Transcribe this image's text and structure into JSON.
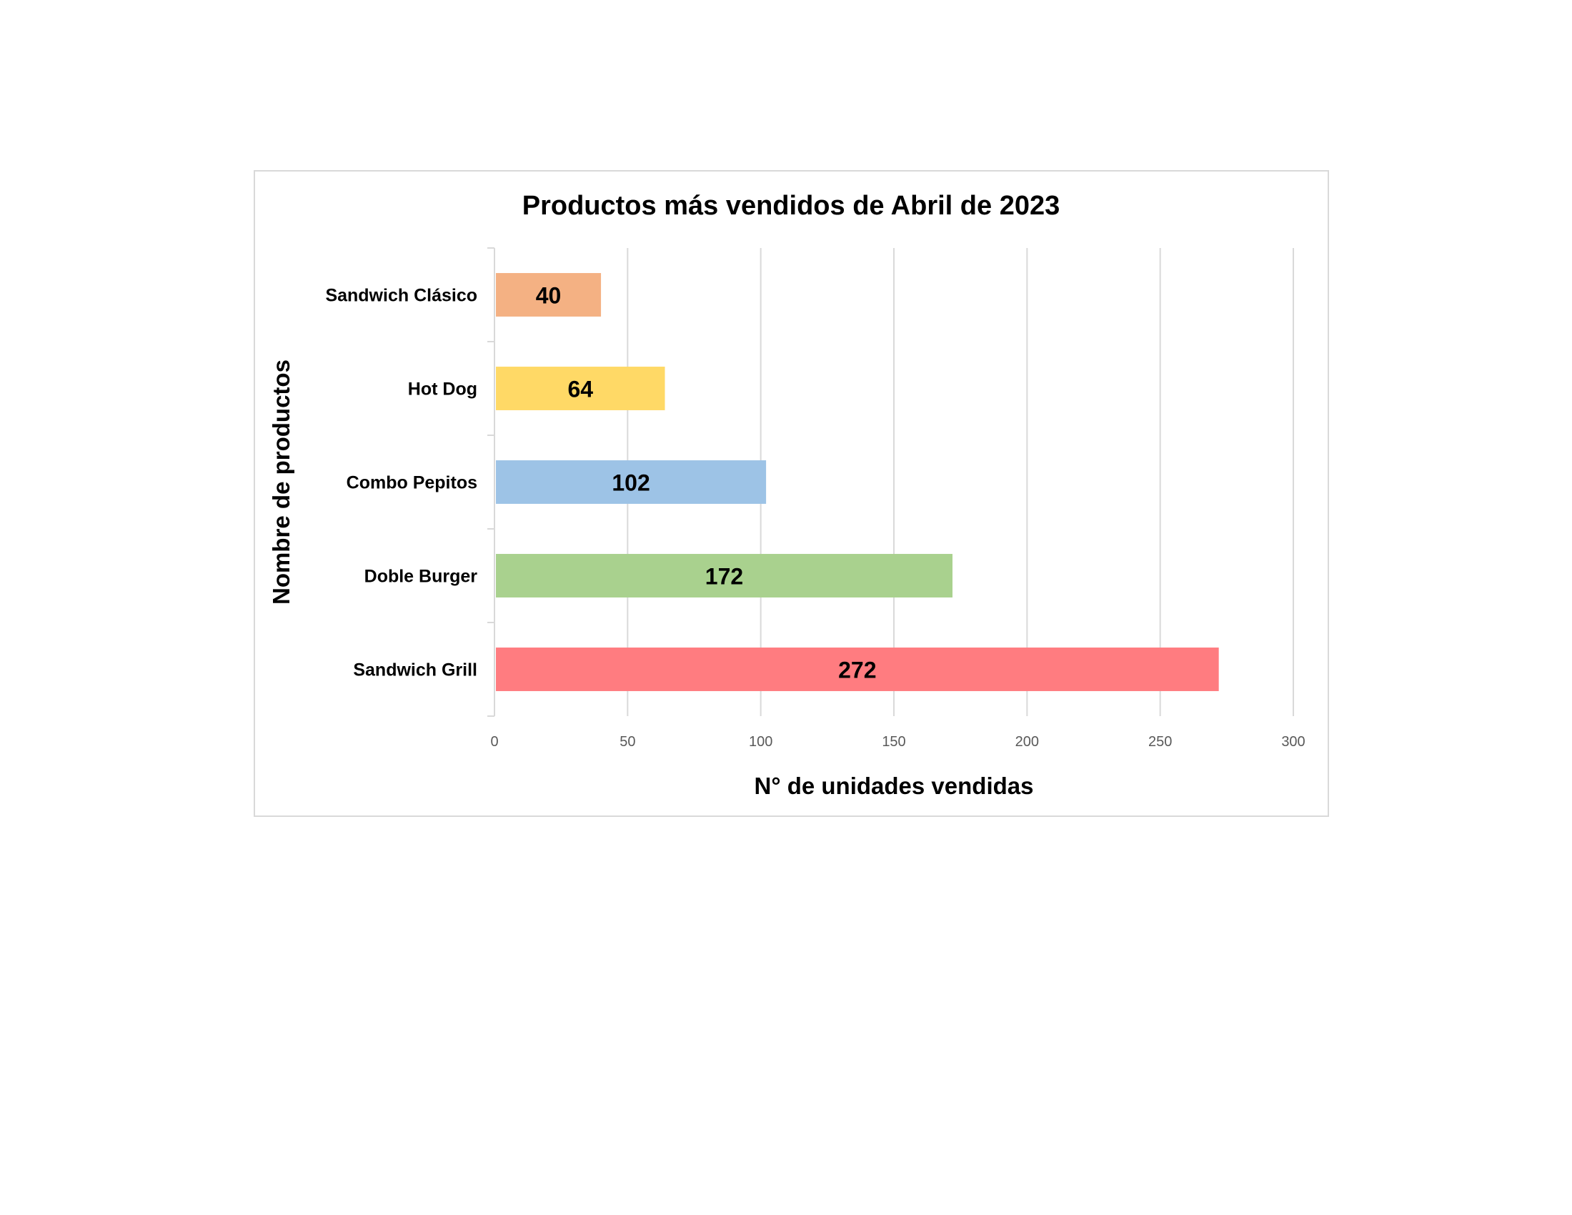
{
  "chart_data": {
    "type": "bar",
    "orientation": "horizontal",
    "title": "Productos más vendidos de Abril de 2023",
    "xlabel": "N° de unidades vendidas",
    "ylabel": "Nombre de productos",
    "categories": [
      "Sandwich Clásico",
      "Hot Dog",
      "Combo Pepitos",
      "Doble Burger",
      "Sandwich Grill"
    ],
    "values": [
      40,
      64,
      102,
      172,
      272
    ],
    "data_labels": [
      "40",
      "64",
      "102",
      "172",
      "272"
    ],
    "colors": [
      "#F4B183",
      "#FFD966",
      "#9DC3E6",
      "#A9D18E",
      "#FF7C80"
    ],
    "xlim": [
      0,
      300
    ],
    "xticks": [
      0,
      50,
      100,
      150,
      200,
      250,
      300
    ],
    "xtick_labels": [
      "0",
      "50",
      "100",
      "150",
      "200",
      "250",
      "300"
    ],
    "grid": "vertical",
    "legend": "none"
  }
}
